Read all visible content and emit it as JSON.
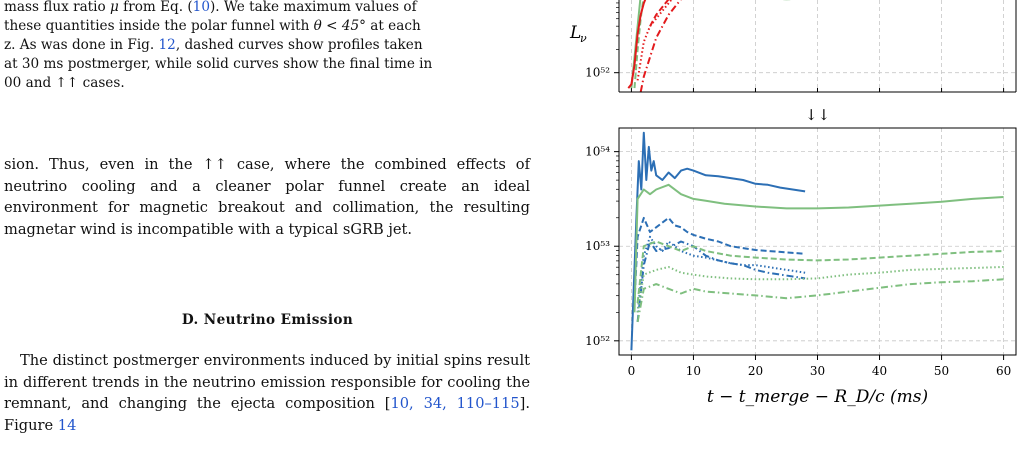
{
  "caption": {
    "line1_pre": "mass flux ratio ",
    "line1_sym": "μ",
    "line1_mid": " from Eq. (",
    "line1_ref": "10",
    "line1_post": "). We take maximum values of",
    "line2_pre": "these quantities inside the polar funnel with ",
    "line2_sym": "θ < 45°",
    "line2_post": " at each",
    "line3": "z. As was done in Fig. ",
    "line3_ref": "12",
    "line3_post": ", dashed curves show profiles taken",
    "line4": "at 30 ms postmerger, while solid curves show the final time in",
    "line5": "00 and ↑↑ cases."
  },
  "body1": "sion. Thus, even in the ↑↑ case, where the combined effects of neutrino cooling and a cleaner polar funnel create an ideal environment for magnetic breakout and collimation, the resulting magnetar wind is incompatible with a typical sGRB jet.",
  "section": "D.   Neutrino Emission",
  "body2_a": "The distinct postmerger environments induced by initial spins result in different trends in the neutrino emission responsible for cooling the remnant, and changing the ejecta composition [",
  "body2_refs": "10, 34, 110–115",
  "body2_b": "]. Figure ",
  "body2_fig": "14",
  "figure": {
    "top_panel": {
      "ylabel": "L",
      "ylabel_sub": "ν",
      "ytick_labels": [
        "10⁵²"
      ]
    },
    "bottom_panel": {
      "title": "↓↓",
      "ytick_labels": [
        "10⁵⁴",
        "10⁵³",
        "10⁵²"
      ],
      "xtick_labels": [
        "0",
        "10",
        "20",
        "30",
        "40",
        "50",
        "60"
      ],
      "xlabel": "t − t_merge − R_D/c (ms)"
    },
    "colors": {
      "blue": "#2c6fb5",
      "green": "#7fbf7f",
      "red": "#e31a1c",
      "grid": "#c8c8c8"
    }
  },
  "chart_data": {
    "type": "line",
    "title": "↓↓",
    "xlabel": "t − t_merge − R_D/c (ms)",
    "ylabel": "L_ν",
    "xlim": [
      -2,
      62
    ],
    "ylim_log10": [
      51.85,
      54.25
    ],
    "y_scale": "log",
    "grid": true,
    "series": [
      {
        "color": "#2c6fb5",
        "dash": "solid",
        "x": [
          0,
          0.4,
          0.8,
          1.2,
          1.6,
          2,
          2.4,
          2.8,
          3.2,
          3.6,
          4,
          5,
          6,
          7,
          8,
          9,
          10,
          12,
          14,
          16,
          18,
          20,
          22,
          24,
          26,
          28
        ],
        "y_log10": [
          51.9,
          52.6,
          53.3,
          53.9,
          53.6,
          54.2,
          53.7,
          54.05,
          53.8,
          53.9,
          53.75,
          53.7,
          53.78,
          53.72,
          53.8,
          53.82,
          53.8,
          53.75,
          53.74,
          53.72,
          53.7,
          53.66,
          53.65,
          53.62,
          53.6,
          53.58
        ]
      },
      {
        "color": "#2c6fb5",
        "dash": "dashed",
        "x": [
          0.5,
          1,
          2,
          3,
          4,
          5,
          6,
          7,
          8,
          9,
          10,
          12,
          14,
          16,
          18,
          20,
          22,
          24,
          26,
          28
        ],
        "y_log10": [
          52.4,
          53.1,
          53.3,
          53.15,
          53.2,
          53.25,
          53.3,
          53.22,
          53.2,
          53.15,
          53.12,
          53.08,
          53.05,
          53.0,
          52.98,
          52.96,
          52.95,
          52.94,
          52.93,
          52.92
        ]
      },
      {
        "color": "#2c6fb5",
        "dash": "dotted",
        "x": [
          1,
          2,
          3,
          4,
          5,
          6,
          8,
          10,
          12,
          14,
          16,
          18,
          20,
          22,
          24,
          26,
          28
        ],
        "y_log10": [
          52.3,
          52.9,
          53.1,
          53.0,
          52.95,
          53.05,
          52.95,
          52.9,
          52.88,
          52.85,
          52.82,
          52.8,
          52.8,
          52.78,
          52.76,
          52.74,
          52.72
        ]
      },
      {
        "color": "#2c6fb5",
        "dash": "dashdot",
        "x": [
          1,
          2,
          3,
          4,
          6,
          8,
          10,
          12,
          14,
          16,
          18,
          20,
          22,
          24,
          26,
          28
        ],
        "y_log10": [
          52.2,
          52.8,
          53.05,
          52.95,
          52.98,
          53.05,
          53.0,
          52.9,
          52.85,
          52.82,
          52.8,
          52.75,
          52.72,
          52.7,
          52.68,
          52.66
        ]
      },
      {
        "color": "#7fbf7f",
        "dash": "solid",
        "x": [
          0.5,
          1,
          2,
          3,
          4,
          6,
          8,
          10,
          12,
          15,
          20,
          25,
          30,
          35,
          40,
          45,
          50,
          55,
          60
        ],
        "y_log10": [
          52.3,
          53.5,
          53.6,
          53.55,
          53.6,
          53.65,
          53.55,
          53.5,
          53.48,
          53.45,
          53.42,
          53.4,
          53.4,
          53.41,
          53.43,
          53.45,
          53.47,
          53.5,
          53.52
        ]
      },
      {
        "color": "#7fbf7f",
        "dash": "dashed",
        "x": [
          1,
          2,
          4,
          6,
          8,
          10,
          12,
          16,
          20,
          25,
          30,
          35,
          40,
          45,
          50,
          55,
          60
        ],
        "y_log10": [
          52.4,
          53.0,
          53.05,
          53.0,
          52.95,
          53.0,
          52.95,
          52.9,
          52.88,
          52.86,
          52.85,
          52.86,
          52.88,
          52.9,
          52.92,
          52.94,
          52.95
        ]
      },
      {
        "color": "#7fbf7f",
        "dash": "dotted",
        "x": [
          1,
          2,
          4,
          6,
          8,
          10,
          12,
          16,
          20,
          25,
          30,
          35,
          40,
          45,
          50,
          55,
          60
        ],
        "y_log10": [
          52.3,
          52.7,
          52.75,
          52.78,
          52.72,
          52.7,
          52.68,
          52.66,
          52.65,
          52.65,
          52.66,
          52.7,
          52.72,
          52.75,
          52.76,
          52.77,
          52.78
        ]
      },
      {
        "color": "#7fbf7f",
        "dash": "dashdot",
        "x": [
          1,
          2,
          4,
          6,
          8,
          10,
          12,
          16,
          20,
          25,
          30,
          35,
          40,
          45,
          50,
          55,
          60
        ],
        "y_log10": [
          52.2,
          52.55,
          52.6,
          52.55,
          52.5,
          52.55,
          52.52,
          52.5,
          52.48,
          52.45,
          52.48,
          52.52,
          52.56,
          52.6,
          52.62,
          52.63,
          52.65
        ]
      }
    ]
  }
}
